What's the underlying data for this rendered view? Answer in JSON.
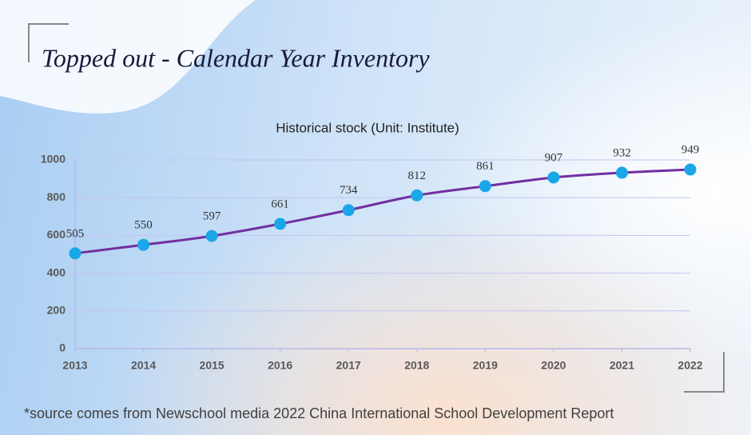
{
  "slide_title": "Topped out - Calendar Year Inventory",
  "footnote": "*source comes from Newschool media 2022 China International School Development Report",
  "chart_data": {
    "type": "line",
    "title": "Historical stock (Unit: Institute)",
    "categories": [
      "2013",
      "2014",
      "2015",
      "2016",
      "2017",
      "2018",
      "2019",
      "2020",
      "2021",
      "2022"
    ],
    "values": [
      505,
      550,
      597,
      661,
      734,
      812,
      861,
      907,
      932,
      949
    ],
    "color": "#7030a0",
    "marker_color": "#1aa7e8",
    "ylim": [
      0,
      1000
    ],
    "yticks": [
      0,
      200,
      400,
      600,
      800,
      1000
    ],
    "grid": true
  }
}
